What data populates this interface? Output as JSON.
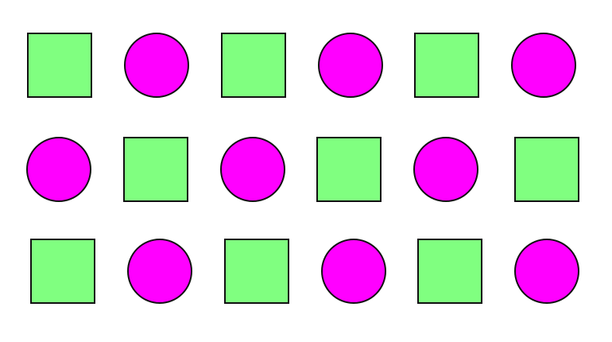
{
  "colors": {
    "square_fill": "#80ff80",
    "circle_fill": "#ff00ff",
    "outline": "#111111",
    "background": "#ffffff"
  },
  "rows": [
    [
      "square",
      "circle",
      "square",
      "circle",
      "square",
      "circle"
    ],
    [
      "circle",
      "square",
      "circle",
      "square",
      "circle",
      "square"
    ],
    [
      "square",
      "circle",
      "square",
      "circle",
      "square",
      "circle"
    ]
  ]
}
